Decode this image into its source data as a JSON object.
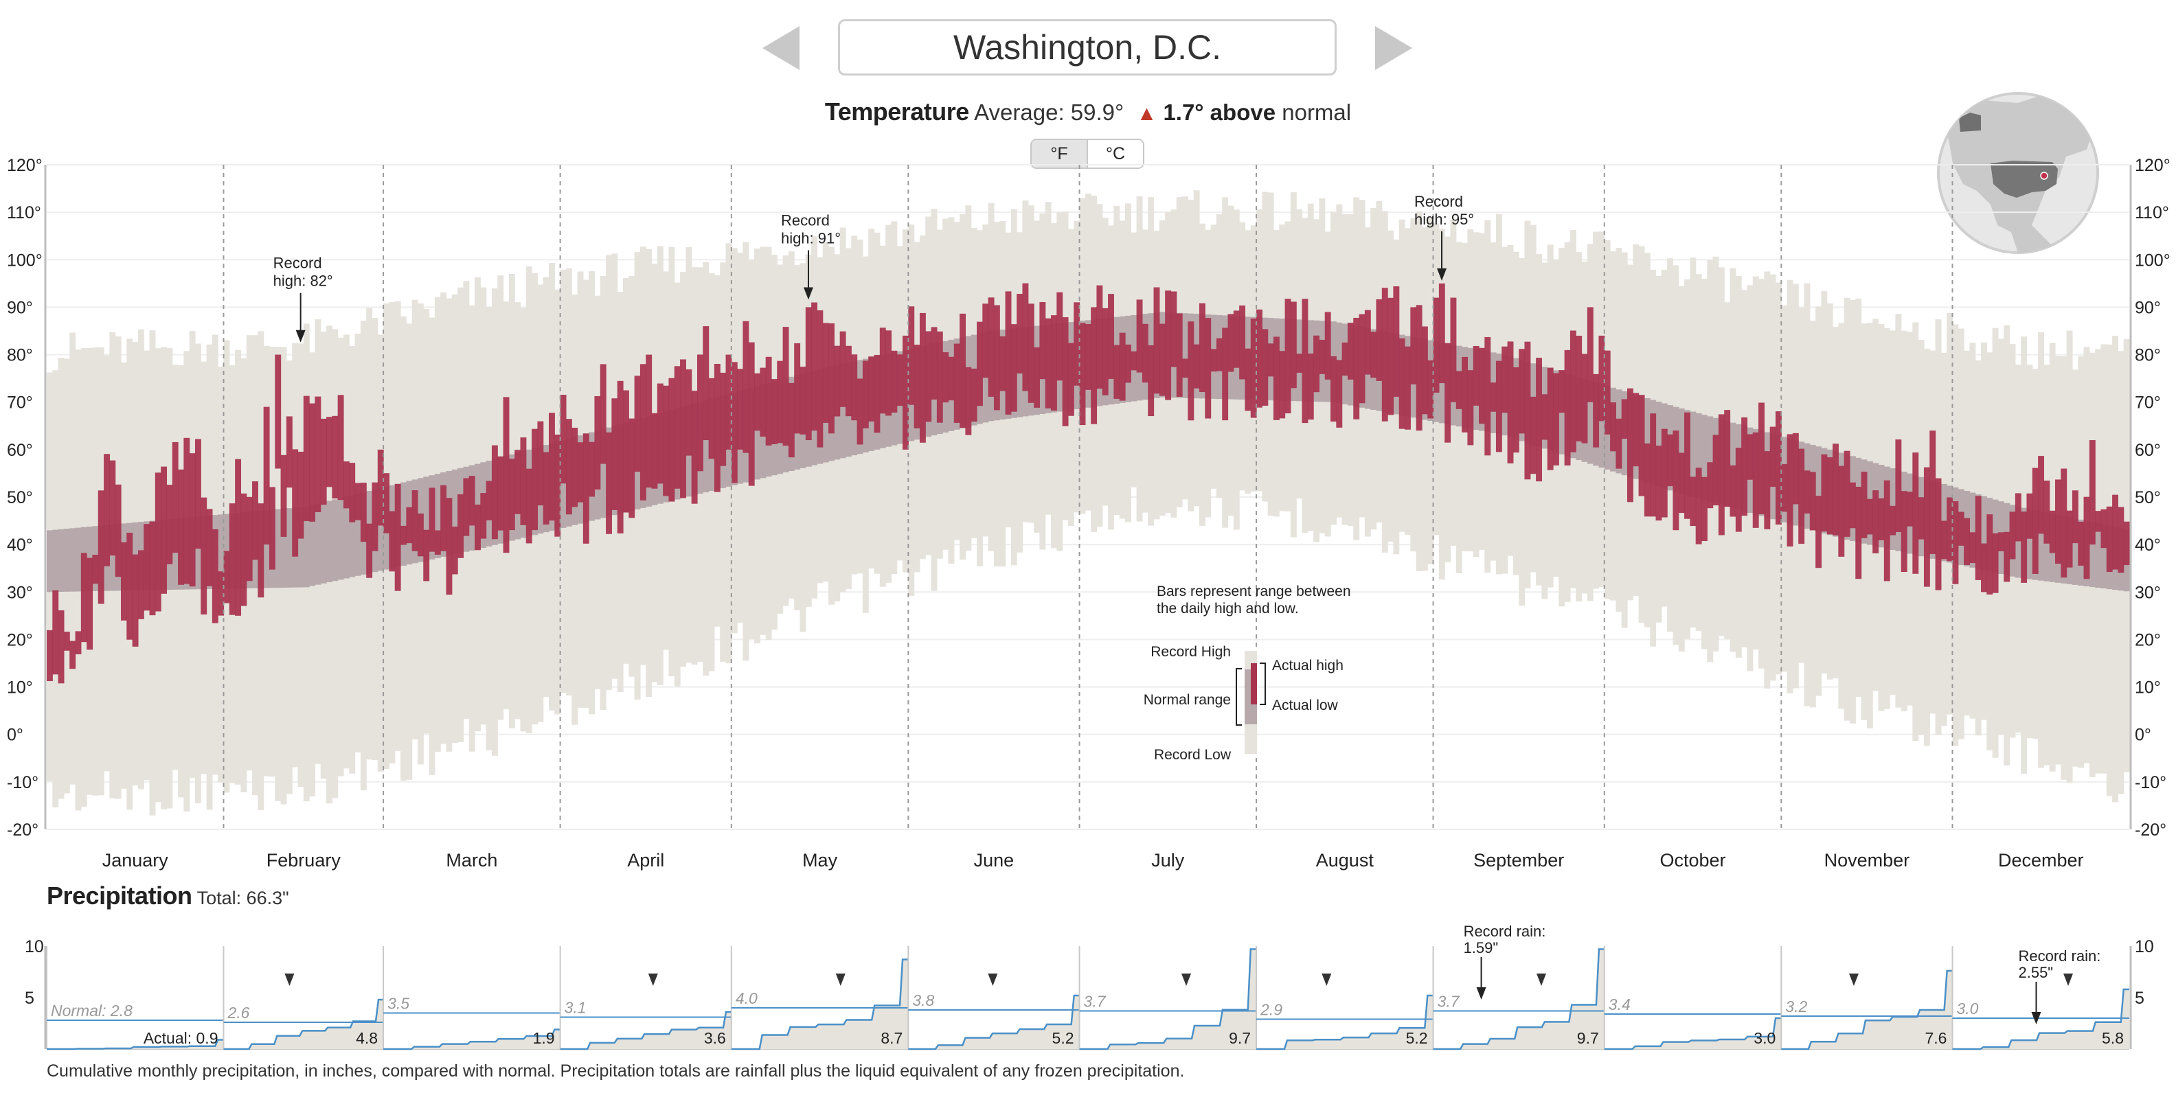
{
  "header": {
    "city": "Washington, D.C.",
    "temperature_title": "Temperature",
    "average_label": "Average: 59.9°",
    "above_amount": "1.7° above",
    "above_suffix": "normal",
    "unit_f": "°F",
    "unit_c": "°C"
  },
  "colors": {
    "actual": "#a8334f",
    "normal": "#b7a9ab",
    "record": "#e6e3dc",
    "precip_line": "#4a90c8",
    "precip_fill": "#e6e3dc"
  },
  "chart_data": [
    {
      "type": "bar",
      "subtype": "daily-temperature-range",
      "ylim": [
        -20,
        120
      ],
      "yticks": [
        "120°",
        "110°",
        "100°",
        "90°",
        "80°",
        "70°",
        "60°",
        "50°",
        "40°",
        "30°",
        "20°",
        "10°",
        "0°",
        "-10°",
        "-20°"
      ],
      "ytick_values": [
        120,
        110,
        100,
        90,
        80,
        70,
        60,
        50,
        40,
        30,
        20,
        10,
        0,
        -10,
        -20
      ],
      "months": [
        "January",
        "February",
        "March",
        "April",
        "May",
        "June",
        "July",
        "August",
        "September",
        "October",
        "November",
        "December"
      ],
      "month_days": [
        31,
        28,
        31,
        30,
        31,
        30,
        31,
        31,
        30,
        31,
        30,
        31
      ],
      "normal_anchors": [
        [
          0,
          30,
          43
        ],
        [
          45,
          31,
          48
        ],
        [
          75,
          39,
          57
        ],
        [
          105,
          48,
          67
        ],
        [
          135,
          57,
          77
        ],
        [
          165,
          66,
          85
        ],
        [
          195,
          71,
          89
        ],
        [
          225,
          70,
          87
        ],
        [
          255,
          63,
          80
        ],
        [
          285,
          51,
          69
        ],
        [
          315,
          41,
          59
        ],
        [
          345,
          33,
          48
        ],
        [
          365,
          30,
          43
        ]
      ],
      "record_anchors": [
        [
          0,
          -8,
          76
        ],
        [
          45,
          -6,
          78
        ],
        [
          75,
          4,
          88
        ],
        [
          105,
          17,
          94
        ],
        [
          135,
          32,
          99
        ],
        [
          165,
          44,
          104
        ],
        [
          195,
          54,
          106
        ],
        [
          225,
          50,
          105
        ],
        [
          255,
          38,
          101
        ],
        [
          285,
          27,
          94
        ],
        [
          315,
          12,
          84
        ],
        [
          345,
          2,
          77
        ],
        [
          365,
          -8,
          76
        ]
      ],
      "actual_anchors": [
        [
          0,
          14,
          26
        ],
        [
          5,
          12,
          25
        ],
        [
          10,
          38,
          58
        ],
        [
          15,
          22,
          40
        ],
        [
          20,
          34,
          52
        ],
        [
          25,
          36,
          60
        ],
        [
          30,
          22,
          38
        ],
        [
          35,
          30,
          48
        ],
        [
          40,
          38,
          58
        ],
        [
          45,
          46,
          66
        ],
        [
          50,
          52,
          72
        ],
        [
          55,
          38,
          52
        ],
        [
          60,
          36,
          48
        ],
        [
          65,
          34,
          46
        ],
        [
          70,
          35,
          48
        ],
        [
          75,
          40,
          52
        ],
        [
          80,
          44,
          66
        ],
        [
          85,
          42,
          60
        ],
        [
          90,
          48,
          66
        ],
        [
          95,
          45,
          68
        ],
        [
          100,
          48,
          70
        ],
        [
          105,
          52,
          74
        ],
        [
          110,
          52,
          72
        ],
        [
          115,
          56,
          75
        ],
        [
          120,
          55,
          80
        ],
        [
          125,
          60,
          82
        ],
        [
          130,
          57,
          80
        ],
        [
          135,
          62,
          84
        ],
        [
          140,
          64,
          82
        ],
        [
          145,
          62,
          80
        ],
        [
          150,
          66,
          84
        ],
        [
          155,
          68,
          86
        ],
        [
          160,
          66,
          82
        ],
        [
          165,
          70,
          86
        ],
        [
          170,
          72,
          90
        ],
        [
          175,
          70,
          86
        ],
        [
          180,
          70,
          88
        ],
        [
          185,
          72,
          88
        ],
        [
          190,
          72,
          86
        ],
        [
          195,
          73,
          88
        ],
        [
          200,
          72,
          84
        ],
        [
          205,
          72,
          86
        ],
        [
          210,
          72,
          88
        ],
        [
          215,
          71,
          86
        ],
        [
          220,
          70,
          86
        ],
        [
          225,
          70,
          82
        ],
        [
          230,
          70,
          84
        ],
        [
          235,
          70,
          90
        ],
        [
          240,
          68,
          86
        ],
        [
          245,
          66,
          84
        ],
        [
          250,
          66,
          80
        ],
        [
          255,
          62,
          78
        ],
        [
          260,
          58,
          76
        ],
        [
          265,
          62,
          80
        ],
        [
          270,
          64,
          84
        ],
        [
          275,
          58,
          72
        ],
        [
          280,
          50,
          66
        ],
        [
          285,
          46,
          62
        ],
        [
          290,
          44,
          60
        ],
        [
          295,
          46,
          62
        ],
        [
          300,
          50,
          66
        ],
        [
          305,
          44,
          60
        ],
        [
          310,
          40,
          56
        ],
        [
          315,
          38,
          54
        ],
        [
          320,
          36,
          52
        ],
        [
          325,
          40,
          56
        ],
        [
          330,
          36,
          50
        ],
        [
          335,
          34,
          48
        ],
        [
          340,
          32,
          46
        ],
        [
          345,
          36,
          50
        ],
        [
          350,
          38,
          54
        ],
        [
          355,
          36,
          52
        ],
        [
          360,
          38,
          50
        ],
        [
          364,
          36,
          50
        ]
      ],
      "spikes": [
        [
          33,
          25,
          58
        ],
        [
          38,
          40,
          69
        ],
        [
          40,
          56,
          80
        ],
        [
          42,
          52,
          67
        ],
        [
          58,
          44,
          60
        ],
        [
          97,
          57,
          78
        ],
        [
          105,
          52,
          80
        ],
        [
          115,
          62,
          86
        ],
        [
          119,
          60,
          80
        ],
        [
          121,
          60,
          77
        ],
        [
          133,
          62,
          90
        ],
        [
          134,
          64,
          91
        ],
        [
          150,
          60,
          84
        ],
        [
          243,
          72,
          92
        ],
        [
          244,
          74,
          95
        ],
        [
          246,
          70,
          92
        ],
        [
          270,
          70,
          90
        ],
        [
          272,
          66,
          84
        ],
        [
          330,
          38,
          64
        ],
        [
          358,
          40,
          62
        ]
      ],
      "annotations": [
        {
          "line1": "Record",
          "line2": "high: 82°",
          "day": 44,
          "value": 82
        },
        {
          "line1": "Record",
          "line2": "high: 91°",
          "day": 133,
          "value": 91
        },
        {
          "line1": "Record",
          "line2": "high: 95°",
          "day": 244,
          "value": 95
        }
      ],
      "legend": {
        "caption_line1": "Bars represent range between",
        "caption_line2": "the daily high and low.",
        "record_high": "Record High",
        "normal_range": "Normal range",
        "record_low": "Record Low",
        "actual_high": "Actual high",
        "actual_low": "Actual low"
      }
    },
    {
      "type": "area",
      "subtype": "cumulative-monthly-precipitation",
      "ylim": [
        0,
        10
      ],
      "yticks": [
        "10",
        "5"
      ],
      "ytick_values": [
        10,
        5
      ],
      "normals": [
        2.8,
        2.6,
        3.5,
        3.1,
        4.0,
        3.8,
        3.7,
        2.9,
        3.7,
        3.4,
        3.2,
        3.0
      ],
      "normal_labels": [
        "Normal: 2.8",
        "2.6",
        "3.5",
        "3.1",
        "4.0",
        "3.8",
        "3.7",
        "2.9",
        "3.7",
        "3.4",
        "3.2",
        "3.0"
      ],
      "actual_totals": [
        0.9,
        4.8,
        1.9,
        3.6,
        8.7,
        5.2,
        9.7,
        5.2,
        9.7,
        3.0,
        7.6,
        5.8
      ],
      "actual_labels": [
        "Actual: 0.9",
        "4.8",
        "1.9",
        "3.6",
        "8.7",
        "5.2",
        "9.7",
        "5.2",
        "9.7",
        "3.0",
        "7.6",
        "5.8"
      ],
      "annotations": [
        {
          "line1": "Record rain:",
          "line2": "1.59\"",
          "month": 8,
          "value": 1.59
        },
        {
          "line1": "Record rain:",
          "line2": "2.55\"",
          "month": 11,
          "value": 2.55
        }
      ]
    }
  ],
  "precipitation": {
    "title": "Precipitation",
    "total_label": "Total: 66.3\"",
    "note": "Cumulative monthly precipitation, in inches, compared with normal. Precipitation totals are rainfall plus the liquid equivalent of any frozen precipitation."
  }
}
